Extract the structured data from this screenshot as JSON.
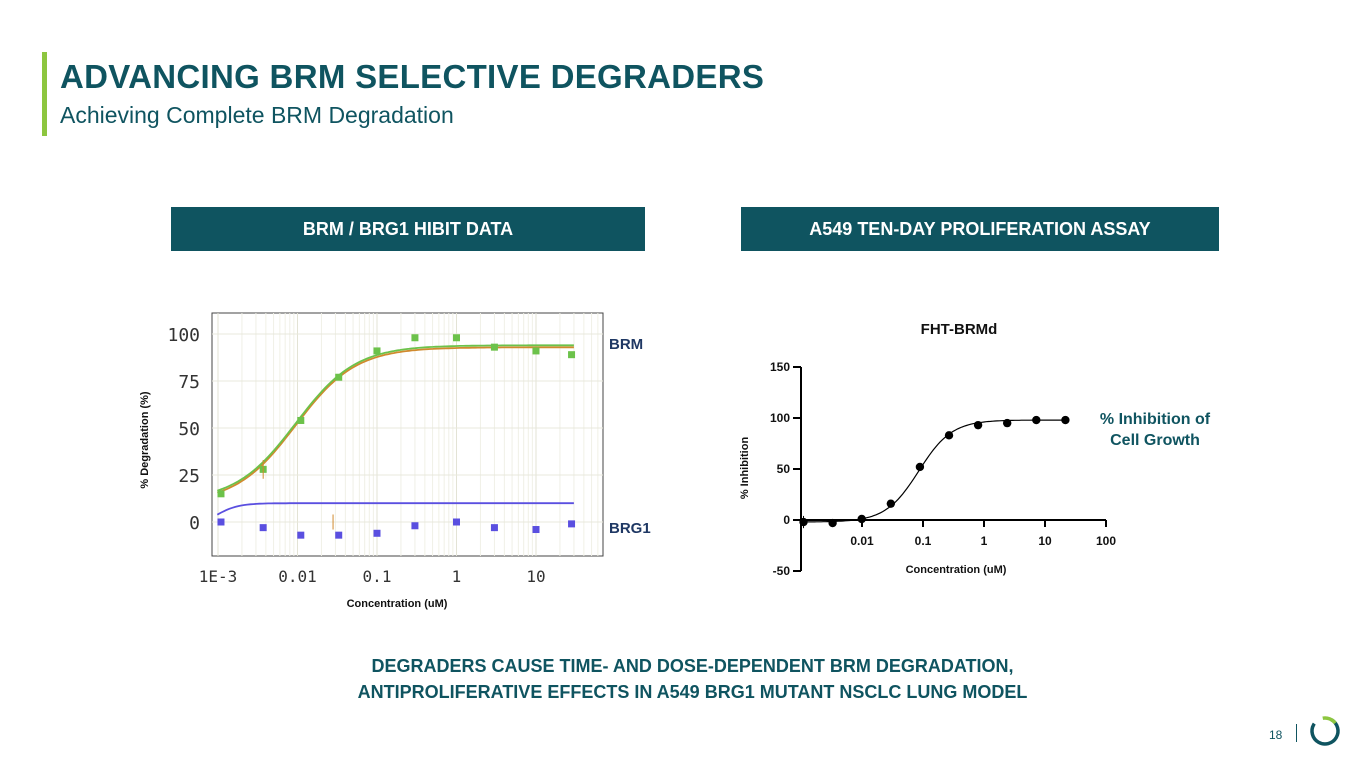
{
  "slide": {
    "title": "ADVANCING BRM SELECTIVE DEGRADERS",
    "subtitle": "Achieving Complete BRM Degradation",
    "left_header": "BRM / BRG1 HIBIT DATA",
    "right_header": "A549 TEN-DAY PROLIFERATION ASSAY",
    "conclusion_line1": "DEGRADERS CAUSE TIME- AND DOSE-DEPENDENT BRM DEGRADATION,",
    "conclusion_line2": "ANTIPROLIFERATIVE EFFECTS IN A549 BRG1 MUTANT NSCLC LUNG MODEL",
    "page_number": "18",
    "colors": {
      "primary": "#0f5460",
      "accent": "#8dc63f"
    }
  },
  "chart_data": [
    {
      "type": "scatter",
      "title": "",
      "xlabel": "Concentration (uM)",
      "ylabel": "% Degradation (%)",
      "x_scale": "log",
      "xlim": [
        0.001,
        50
      ],
      "ylim": [
        -20,
        105
      ],
      "x_ticks": [
        0.001,
        0.01,
        0.1,
        1,
        10
      ],
      "x_tick_labels": [
        "1E-3",
        "0.01",
        "0.1",
        "1",
        "10"
      ],
      "y_ticks": [
        0,
        25,
        50,
        75,
        100
      ],
      "y_tick_labels": [
        "0",
        "25",
        "50",
        "75",
        "100"
      ],
      "grid": true,
      "series": [
        {
          "name": "BRM",
          "color": "#6cc24a",
          "fit_color": "#d08a2e",
          "x": [
            0.00109,
            0.0037,
            0.011,
            0.033,
            0.1,
            0.3,
            1,
            3,
            10,
            28
          ],
          "y": [
            15,
            28,
            54,
            77,
            91,
            98,
            98,
            93,
            91,
            89
          ],
          "fit": {
            "bottom": 11,
            "top": 94,
            "ec50": 0.0095,
            "hill": 1.15
          }
        },
        {
          "name": "BRG1",
          "color": "#5a4fe0",
          "fit_color": "#5a4fe0",
          "x": [
            0.00109,
            0.0037,
            0.011,
            0.033,
            0.1,
            0.3,
            1,
            3,
            10,
            28
          ],
          "y": [
            0,
            -3,
            -7,
            -7,
            -6,
            -2,
            0,
            -3,
            -4,
            -1
          ],
          "fit": {
            "bottom": -4,
            "top": 10,
            "ec50": 0.0009,
            "hill": 3
          }
        }
      ]
    },
    {
      "type": "scatter",
      "title": "FHT-BRMd",
      "xlabel": "Concentration (uM)",
      "ylabel": "% Inhibition",
      "x_scale": "log",
      "xlim": [
        0.001,
        100
      ],
      "ylim": [
        -50,
        150
      ],
      "x_ticks": [
        0.01,
        0.1,
        1,
        10,
        100
      ],
      "x_tick_labels": [
        "0.01",
        "0.1",
        "1",
        "10",
        "100"
      ],
      "y_ticks": [
        -50,
        0,
        50,
        100,
        150
      ],
      "y_tick_labels": [
        "-50",
        "0",
        "50",
        "100",
        "150"
      ],
      "grid": false,
      "series": [
        {
          "name": "% Inhibition of Cell Growth",
          "color": "#000000",
          "x": [
            0.0011,
            0.0033,
            0.0099,
            0.0297,
            0.089,
            0.267,
            0.8,
            2.4,
            7.2,
            21.6
          ],
          "y": [
            -2,
            -3,
            1,
            16,
            52,
            83,
            93,
            95,
            98,
            98
          ],
          "fit": {
            "bottom": -2,
            "top": 98,
            "ec50": 0.085,
            "hill": 1.6
          }
        }
      ]
    }
  ],
  "labels": {
    "brm": "BRM",
    "brg1": "BRG1",
    "right_legend_line1": "% Inhibition of",
    "right_legend_line2": "Cell Growth"
  }
}
